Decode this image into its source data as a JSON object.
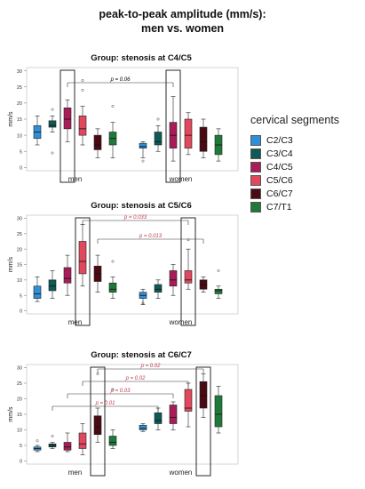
{
  "figure": {
    "title_line1": "peak-to-peak amplitude (mm/s):",
    "title_line2": "men vs. women"
  },
  "legend": {
    "title": "cervical segments",
    "items": [
      {
        "label": "C2/C3",
        "color": "#2f8fd8"
      },
      {
        "label": "C3/C4",
        "color": "#0f5a56"
      },
      {
        "label": "C4/C5",
        "color": "#a81d57"
      },
      {
        "label": "C5/C6",
        "color": "#e0485e"
      },
      {
        "label": "C6/C7",
        "color": "#4a0a14"
      },
      {
        "label": "C7/T1",
        "color": "#1f7a3a"
      }
    ]
  },
  "chart_data": [
    {
      "type": "boxplot",
      "title": "Group: stenosis at C4/C5",
      "ylabel": "mm/s",
      "ylim": [
        -1,
        31
      ],
      "yticks": [
        0,
        5,
        10,
        15,
        20,
        25,
        30
      ],
      "groups": [
        "men",
        "women"
      ],
      "highlight": "C4/C5",
      "series": [
        {
          "name": "C2/C3",
          "men": [
            7,
            9,
            11,
            13,
            16
          ],
          "women": [
            3,
            6,
            6.5,
            7.5,
            8
          ],
          "outliers_men": [],
          "outliers_women": [
            2
          ]
        },
        {
          "name": "C3/C4",
          "men": [
            11,
            12.5,
            13,
            14.5,
            16
          ],
          "women": [
            5,
            7,
            8,
            11,
            13
          ],
          "outliers_men": [
            18,
            4.5
          ],
          "outliers_women": [
            15
          ]
        },
        {
          "name": "C4/C5",
          "men": [
            8,
            12,
            15,
            18.5,
            21
          ],
          "women": [
            2,
            6,
            10,
            14,
            22
          ],
          "outliers_men": [],
          "outliers_women": []
        },
        {
          "name": "C5/C6",
          "men": [
            7,
            10,
            12,
            16,
            19
          ],
          "women": [
            4,
            6,
            10,
            15,
            17
          ],
          "outliers_men": [
            27,
            24
          ],
          "outliers_women": []
        },
        {
          "name": "C6/C7",
          "men": [
            3,
            5.5,
            7,
            10,
            12
          ],
          "women": [
            3,
            5,
            8,
            12.5,
            15
          ],
          "outliers_men": [],
          "outliers_women": []
        },
        {
          "name": "C7/T1",
          "men": [
            3,
            7,
            9,
            11,
            14
          ],
          "women": [
            2,
            4,
            7,
            10,
            12
          ],
          "outliers_men": [
            19
          ],
          "outliers_women": []
        }
      ],
      "annotations": [
        {
          "text": "p = 0.06",
          "from": "C4/C5 men",
          "to": "C4/C5 women",
          "color": "black"
        }
      ]
    },
    {
      "type": "boxplot",
      "title": "Group: stenosis at C5/C6",
      "ylabel": "mm/s",
      "ylim": [
        -1,
        31
      ],
      "yticks": [
        0,
        5,
        10,
        15,
        20,
        25,
        30
      ],
      "groups": [
        "men",
        "women"
      ],
      "highlight": "C5/C6",
      "series": [
        {
          "name": "C2/C3",
          "men": [
            3,
            4,
            5.5,
            8,
            11
          ],
          "women": [
            2,
            4,
            5,
            6,
            7
          ],
          "outliers_men": [],
          "outliers_women": [
            2.5
          ]
        },
        {
          "name": "C3/C4",
          "men": [
            4,
            6.5,
            8,
            10,
            13
          ],
          "women": [
            4,
            6,
            7,
            8.5,
            10
          ],
          "outliers_men": [],
          "outliers_women": []
        },
        {
          "name": "C4/C5",
          "men": [
            5,
            9,
            10.5,
            14,
            18
          ],
          "women": [
            5,
            8,
            10,
            13,
            15
          ],
          "outliers_men": [],
          "outliers_women": []
        },
        {
          "name": "C5/C6",
          "men": [
            8,
            12,
            16,
            22.5,
            28
          ],
          "women": [
            7,
            9,
            10,
            13,
            20
          ],
          "outliers_men": [],
          "outliers_women": [
            23
          ]
        },
        {
          "name": "C6/C7",
          "men": [
            6,
            9.5,
            12,
            14.5,
            18
          ],
          "women": [
            6,
            7,
            8.5,
            10,
            11
          ],
          "outliers_men": [],
          "outliers_women": []
        },
        {
          "name": "C7/T1",
          "men": [
            4,
            6,
            7,
            9,
            11
          ],
          "women": [
            4,
            5.5,
            6.5,
            7,
            8
          ],
          "outliers_men": [
            16
          ],
          "outliers_women": [
            13
          ]
        }
      ],
      "annotations": [
        {
          "text": "p = 0.033",
          "from": "C5/C6 men",
          "to": "C5/C6 women",
          "color": "#c43a4a"
        },
        {
          "text": "p = 0.013",
          "from": "C6/C7 men",
          "to": "C6/C7 women",
          "color": "#c43a4a"
        }
      ]
    },
    {
      "type": "boxplot",
      "title": "Group: stenosis at C6/C7",
      "ylabel": "mm/s",
      "ylim": [
        -1,
        31
      ],
      "yticks": [
        0,
        5,
        10,
        15,
        20,
        25,
        30
      ],
      "groups": [
        "men",
        "women"
      ],
      "highlight": "C6/C7",
      "series": [
        {
          "name": "C2/C3",
          "men": [
            3,
            3.5,
            4,
            4.5,
            5
          ],
          "women": [
            9.5,
            10,
            10.5,
            11.5,
            12
          ],
          "outliers_men": [
            6.5
          ],
          "outliers_women": []
        },
        {
          "name": "C3/C4",
          "men": [
            4,
            4.5,
            5,
            5.5,
            6
          ],
          "women": [
            10,
            12,
            13,
            15.5,
            17
          ],
          "outliers_men": [
            8
          ],
          "outliers_women": []
        },
        {
          "name": "C4/C5",
          "men": [
            3,
            3.5,
            4.5,
            6,
            9
          ],
          "women": [
            10,
            12,
            14,
            18,
            19
          ],
          "outliers_men": [],
          "outliers_women": []
        },
        {
          "name": "C5/C6",
          "men": [
            2,
            4,
            5.5,
            9,
            12
          ],
          "women": [
            11,
            16,
            17,
            23,
            25
          ],
          "outliers_men": [],
          "outliers_women": []
        },
        {
          "name": "C6/C7",
          "men": [
            6,
            8.5,
            11,
            14.5,
            17
          ],
          "women": [
            14,
            17,
            21,
            25.5,
            28
          ],
          "outliers_men": [
            28
          ],
          "outliers_women": []
        },
        {
          "name": "C7/T1",
          "men": [
            4,
            5,
            6,
            8,
            10
          ],
          "women": [
            9,
            11,
            15,
            21,
            24
          ],
          "outliers_men": [
            23
          ],
          "outliers_women": []
        }
      ],
      "annotations": [
        {
          "text": "p = 0.02",
          "from": "C6/C7 men",
          "to": "C6/C7 women",
          "color": "#c43a4a"
        },
        {
          "text": "p = 0.02",
          "from": "C5/C6 men",
          "to": "C5/C6 women",
          "color": "#c43a4a"
        },
        {
          "text": "p = 0.03",
          "from": "C4/C5 men",
          "to": "C4/C5 women",
          "color": "#c43a4a"
        },
        {
          "text": "p = 0.01",
          "from": "C3/C4 men",
          "to": "C3/C4 women",
          "color": "#c43a4a"
        }
      ]
    }
  ]
}
